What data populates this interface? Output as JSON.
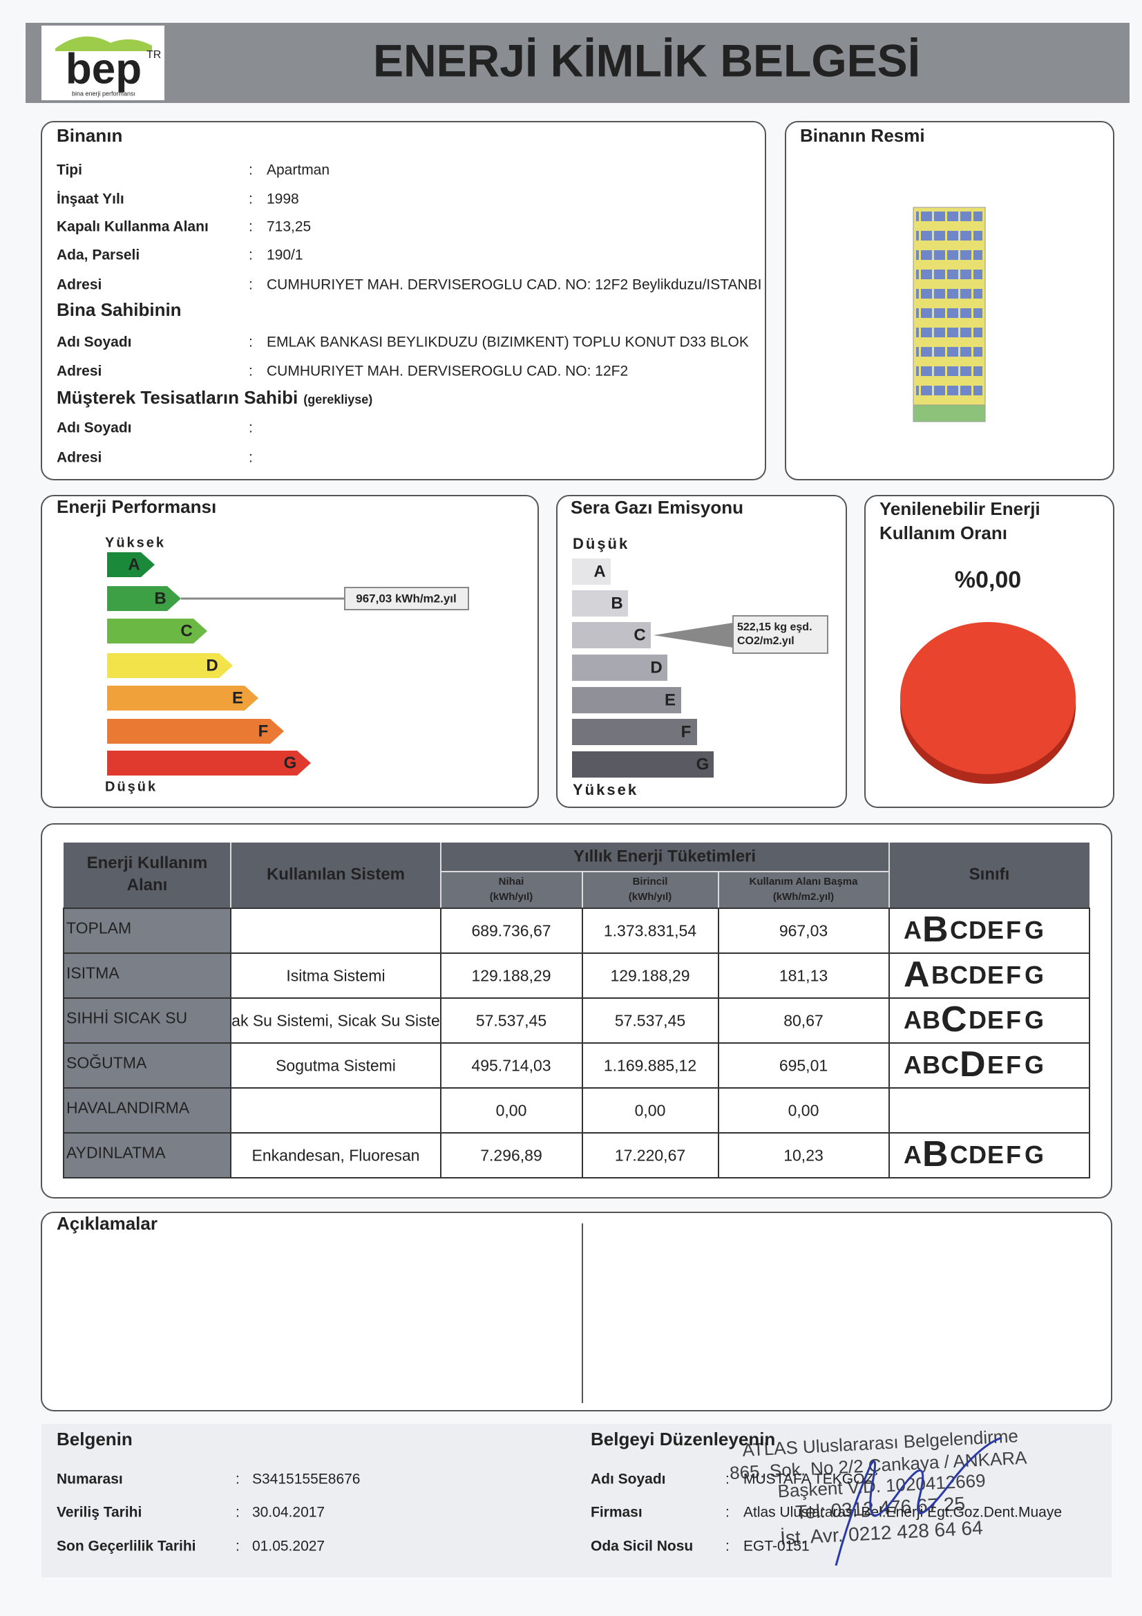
{
  "header": {
    "logo": "bep",
    "logo_sup": "TR",
    "logo_tagline": "bina enerji performansı",
    "title": "ENERJİ KİMLİK BELGESİ"
  },
  "separator": ":",
  "building": {
    "title": "Binanın",
    "fields": [
      {
        "label": "Tipi",
        "value": "Apartman"
      },
      {
        "label": "İnşaat Yılı",
        "value": "1998"
      },
      {
        "label": "Kapalı Kullanma Alanı",
        "value": "713,25"
      },
      {
        "label": "Ada, Parseli",
        "value": "190/1"
      },
      {
        "label": "Adresi",
        "value": "CUMHURIYET MAH. DERVISEROGLU CAD. NO: 12F2 Beylikduzu/ISTANBI"
      }
    ]
  },
  "owner": {
    "title": "Bina Sahibinin",
    "fields": [
      {
        "label": "Adı Soyadı",
        "value": "EMLAK BANKASI BEYLIKDUZU (BIZIMKENT) TOPLU KONUT D33 BLOK"
      },
      {
        "label": "Adresi",
        "value": "CUMHURIYET MAH. DERVISEROGLU CAD. NO: 12F2"
      }
    ]
  },
  "shared_owner": {
    "title": "Müşterek Tesisatların Sahibi",
    "note": "(gerekliyse)",
    "fields": [
      {
        "label": "Adı Soyadı"
      },
      {
        "label": "Adresi"
      }
    ]
  },
  "building_picture": {
    "title": "Binanın Resmi"
  },
  "energy_performance": {
    "title": "Enerji Performansı",
    "top_label": "Yüksek",
    "bottom_label": "Düşük",
    "classes": [
      "A",
      "B",
      "C",
      "D",
      "E",
      "F",
      "G"
    ],
    "rating": "B",
    "value_label": "967,03 kWh/m2.yıl"
  },
  "emission": {
    "title": "Sera Gazı Emisyonu",
    "top_label": "Düşük",
    "bottom_label": "Yüksek",
    "classes": [
      "A",
      "B",
      "C",
      "D",
      "E",
      "F",
      "G"
    ],
    "rating": "C",
    "value_label": "522,15 kg eşd. CO2/m2.yıl"
  },
  "renewable": {
    "title": [
      "Yenilenebilir Enerji",
      "Kullanım Oranı"
    ],
    "value": "%0,00"
  },
  "table": {
    "headers": {
      "use": "Enerji Kullanım Alanı",
      "system": "Kullanılan Sistem",
      "annual": "Yıllık Enerji Tüketimleri",
      "final": "Nihai",
      "final_unit": "(kWh/yıl)",
      "primary": "Birincil",
      "primary_unit": "(kWh/yıl)",
      "per_area": "Kullanım Alanı Başma",
      "per_area_unit": "(kWh/m2.yıl)",
      "class": "Sınıfı"
    },
    "class_letters": [
      "A",
      "B",
      "C",
      "D",
      "E",
      "F",
      "G"
    ],
    "rows": [
      {
        "use": "TOPLAM",
        "final": "689.736,67",
        "primary": "1.373.831,54",
        "per_area": "967,03",
        "class": "B"
      },
      {
        "use": "ISITMA",
        "system": "Isitma Sistemi",
        "final": "129.188,29",
        "primary": "129.188,29",
        "per_area": "181,13",
        "class": "A"
      },
      {
        "use": "SIHHİ SICAK SU",
        "system": "ak Su Sistemi, Sicak Su Siste",
        "final": "57.537,45",
        "primary": "57.537,45",
        "per_area": "80,67",
        "class": "C"
      },
      {
        "use": "SOĞUTMA",
        "system": "Sogutma Sistemi",
        "final": "495.714,03",
        "primary": "1.169.885,12",
        "per_area": "695,01",
        "class": "D"
      },
      {
        "use": "HAVALANDIRMA",
        "final": "0,00",
        "primary": "0,00",
        "per_area": "0,00"
      },
      {
        "use": "AYDINLATMA",
        "system": "Enkandesan, Fluoresan",
        "final": "7.296,89",
        "primary": "17.220,67",
        "per_area": "10,23",
        "class": "B"
      }
    ]
  },
  "remarks": {
    "title": "Açıklamalar"
  },
  "certificate": {
    "title": "Belgenin",
    "fields": [
      {
        "label": "Numarası",
        "value": "S3415155E8676"
      },
      {
        "label": "Veriliş Tarihi",
        "value": "30.04.2017"
      },
      {
        "label": "Son Geçerlilik Tarihi",
        "value": "01.05.2027"
      }
    ]
  },
  "issuer": {
    "title": "Belgeyi Düzenleyenin",
    "fields": [
      {
        "label": "Adı Soyadı",
        "value": "MUSTAFA TEKGÖZ"
      },
      {
        "label": "Firması",
        "value": "Atlas Uluslararası Bel.Enerji Egt.Goz.Dent.Muaye"
      },
      {
        "label": "Oda Sicil Nosu",
        "value": "EGT-0151"
      }
    ]
  },
  "stamp": {
    "lines": [
      "ATLAS Uluslararası Belgelendirme",
      "865. Sok. No 2/2 Çankaya / ANKARA",
      "Başkent V.D. 1020412669",
      "Tel: 0312 476 67 25",
      "İst. Avr. 0212 428 64 64"
    ]
  }
}
